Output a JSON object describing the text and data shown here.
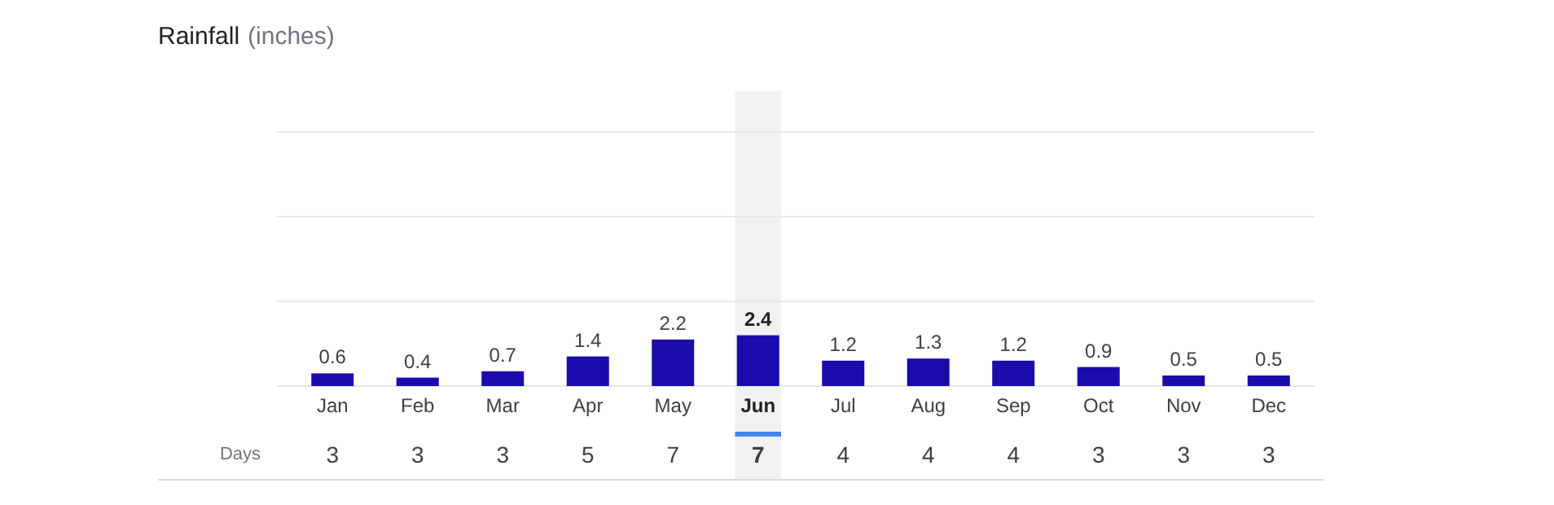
{
  "chart_data": {
    "type": "bar",
    "title": "Rainfall",
    "subtitle": "(inches)",
    "categories": [
      "Jan",
      "Feb",
      "Mar",
      "Apr",
      "May",
      "Jun",
      "Jul",
      "Aug",
      "Sep",
      "Oct",
      "Nov",
      "Dec"
    ],
    "values": [
      0.6,
      0.4,
      0.7,
      1.4,
      2.2,
      2.4,
      1.2,
      1.3,
      1.2,
      0.9,
      0.5,
      0.5
    ],
    "color": "#1a0dab",
    "data_labels": true,
    "grid": "y",
    "tick_labels": "x",
    "ylim": [
      0,
      12
    ],
    "yticks": [
      {
        "value": 0,
        "label": null
      },
      {
        "value": 4,
        "label": null
      },
      {
        "value": 8,
        "label": null
      },
      {
        "value": 12,
        "label": null
      }
    ],
    "bands": [
      {
        "axis": "x",
        "from": "Jun",
        "to": "Jun",
        "color": "#f1f1f1"
      }
    ],
    "annotations": [
      "Days",
      "3",
      "3",
      "3",
      "5",
      "7",
      "7",
      "4",
      "4",
      "4",
      "3",
      "3",
      "3"
    ]
  }
}
